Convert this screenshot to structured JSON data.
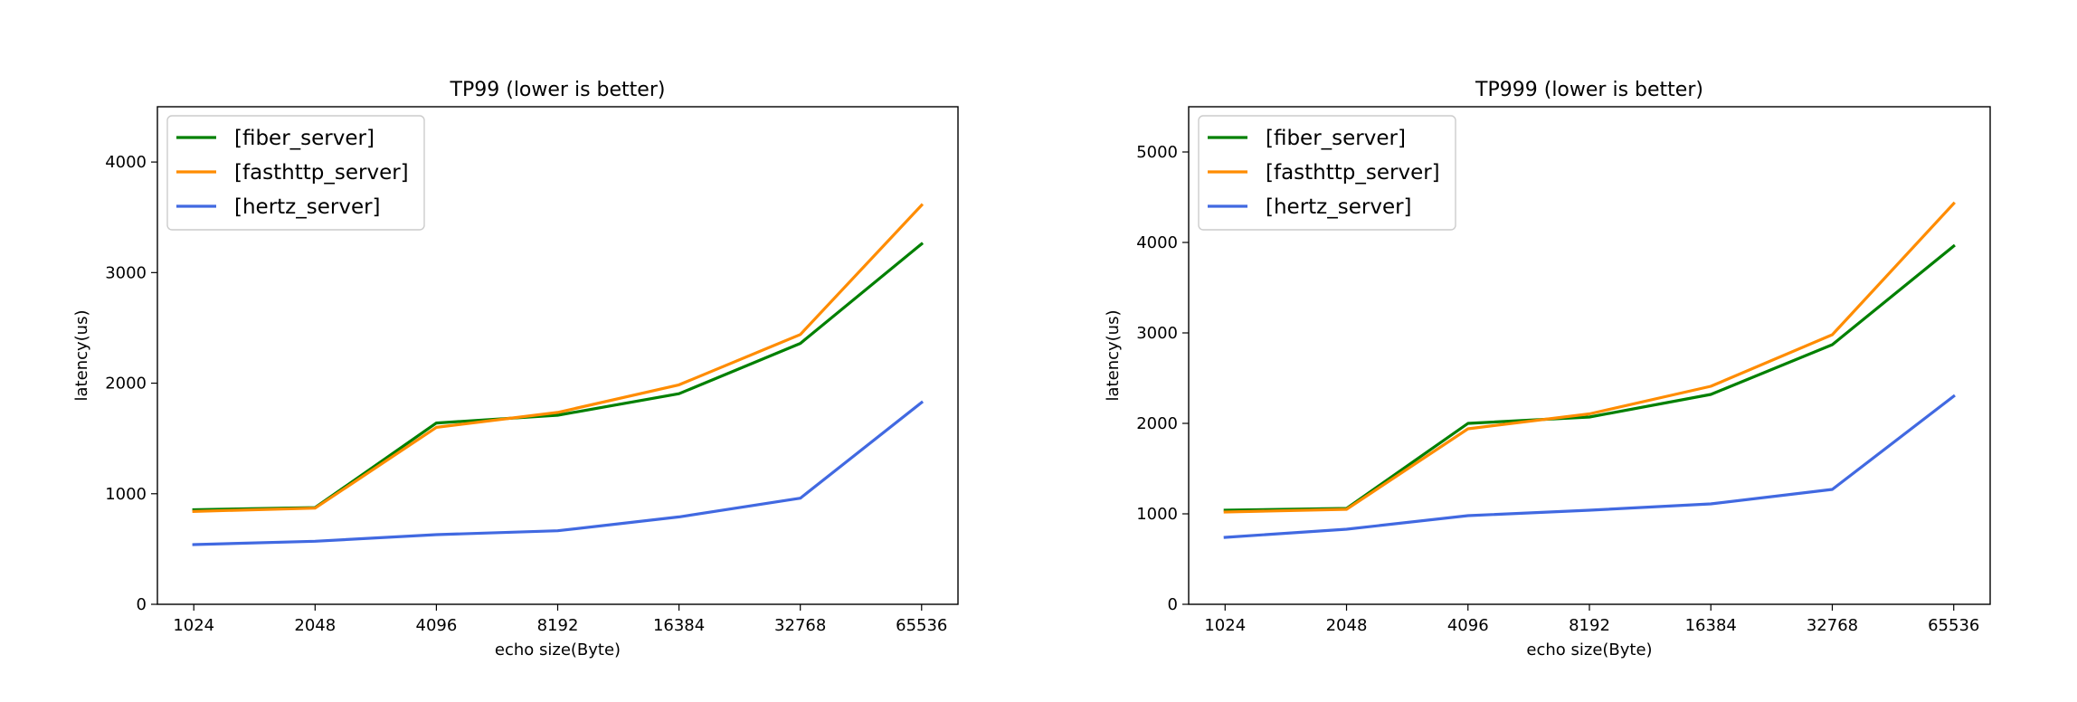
{
  "chart_data": [
    {
      "type": "line",
      "title": "TP99 (lower is better)",
      "xlabel": "echo size(Byte)",
      "ylabel": "latency(us)",
      "categories": [
        "1024",
        "2048",
        "4096",
        "8192",
        "16384",
        "32768",
        "65536"
      ],
      "ylim": [
        0,
        4500
      ],
      "yticks": [
        0,
        1000,
        2000,
        3000,
        4000
      ],
      "grid": false,
      "legend_position": "top-left",
      "series": [
        {
          "name": "[fiber_server]",
          "color": "#008000",
          "values": [
            855,
            875,
            1640,
            1710,
            1905,
            2360,
            3260
          ]
        },
        {
          "name": "[fasthttp_server]",
          "color": "#ff8c00",
          "values": [
            840,
            870,
            1600,
            1735,
            1985,
            2440,
            3610
          ]
        },
        {
          "name": "[hertz_server]",
          "color": "#4169e1",
          "values": [
            540,
            570,
            630,
            665,
            790,
            960,
            1825
          ]
        }
      ]
    },
    {
      "type": "line",
      "title": "TP999 (lower is better)",
      "xlabel": "echo size(Byte)",
      "ylabel": "latency(us)",
      "categories": [
        "1024",
        "2048",
        "4096",
        "8192",
        "16384",
        "32768",
        "65536"
      ],
      "ylim": [
        0,
        5500
      ],
      "yticks": [
        0,
        1000,
        2000,
        3000,
        4000,
        5000
      ],
      "grid": false,
      "legend_position": "top-left",
      "series": [
        {
          "name": "[fiber_server]",
          "color": "#008000",
          "values": [
            1040,
            1060,
            2000,
            2070,
            2320,
            2870,
            3960
          ]
        },
        {
          "name": "[fasthttp_server]",
          "color": "#ff8c00",
          "values": [
            1020,
            1050,
            1940,
            2105,
            2410,
            2980,
            4430
          ]
        },
        {
          "name": "[hertz_server]",
          "color": "#4169e1",
          "values": [
            740,
            830,
            980,
            1040,
            1110,
            1270,
            2300
          ]
        }
      ]
    }
  ]
}
